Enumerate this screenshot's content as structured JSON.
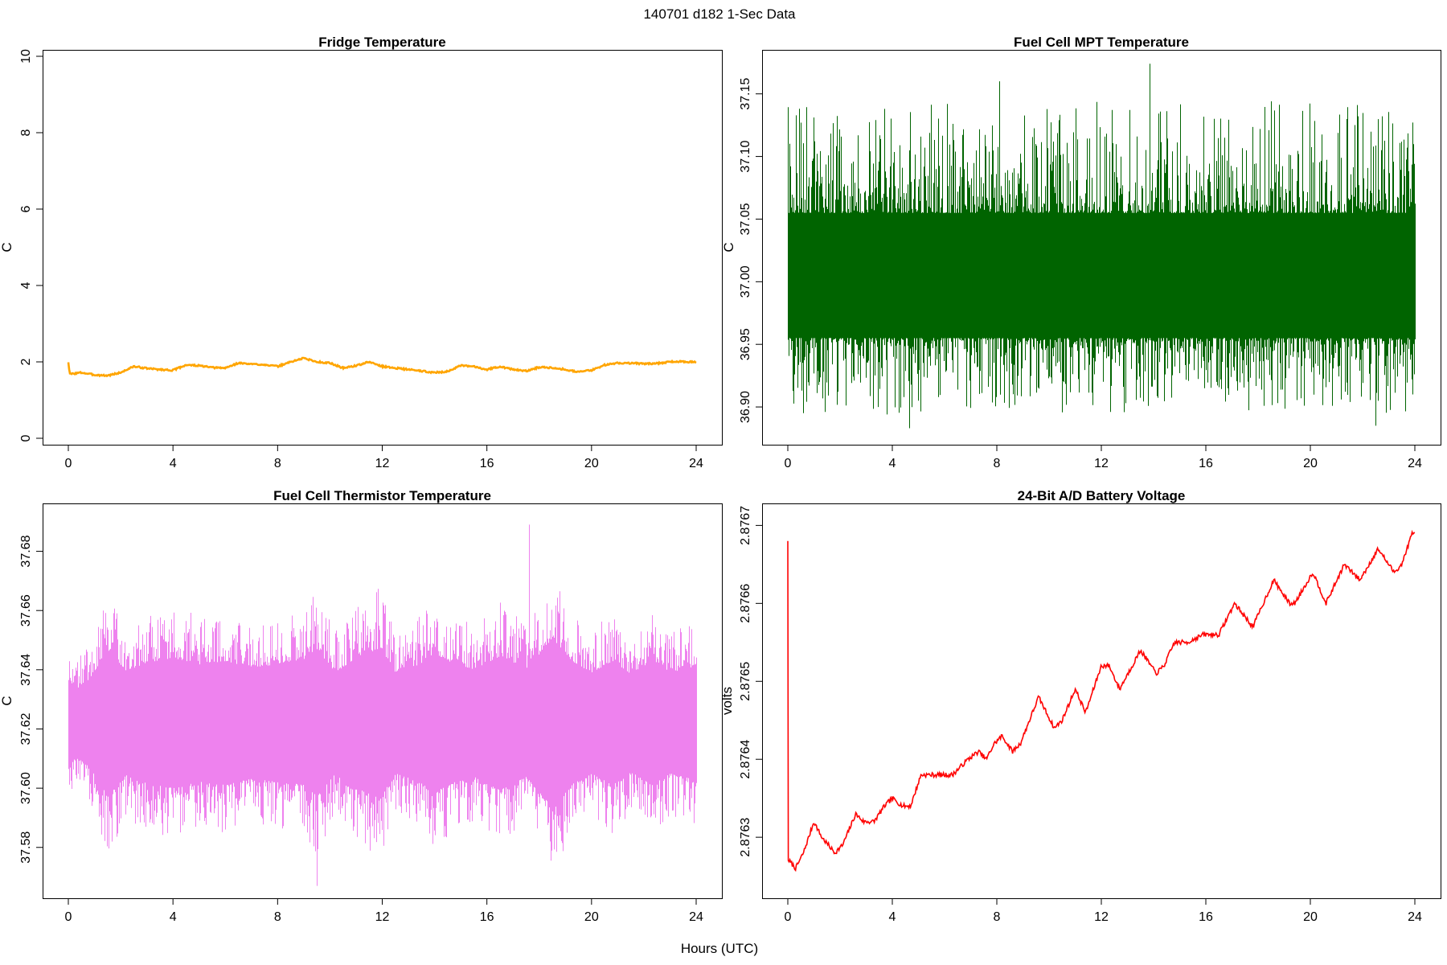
{
  "figure_title": "140701   d182   1-Sec Data",
  "shared_xlabel": "Hours (UTC)",
  "colors": {
    "fridge": "#FFA500",
    "mpt": "#006400",
    "thermistor": "#EE82EE",
    "battery": "#FF0000",
    "axes": "#000000",
    "background": "#FFFFFF"
  },
  "chart_data": [
    {
      "id": "fridge",
      "type": "line",
      "title": "Fridge Temperature",
      "ylabel": "C",
      "xlim": [
        0,
        24
      ],
      "ylim": [
        0,
        10
      ],
      "xticks": [
        0,
        4,
        8,
        12,
        16,
        20,
        24
      ],
      "yticks": [
        0,
        2,
        4,
        6,
        8,
        10
      ],
      "ytick_labels": [
        "0",
        "2",
        "4",
        "6",
        "8",
        "10"
      ],
      "series": [
        {
          "name": "Fridge Temperature",
          "x": [
            0,
            0.05,
            0.5,
            1.0,
            1.5,
            2.0,
            2.5,
            3.0,
            3.5,
            4.0,
            4.5,
            5.0,
            5.5,
            6.0,
            6.5,
            7.0,
            7.5,
            8.0,
            8.5,
            9.0,
            9.5,
            10.0,
            10.5,
            11.0,
            11.5,
            12.0,
            12.5,
            13.0,
            13.5,
            14.0,
            14.5,
            15.0,
            15.5,
            16.0,
            16.5,
            17.0,
            17.5,
            18.0,
            18.5,
            19.0,
            19.5,
            20.0,
            20.5,
            21.0,
            21.5,
            22.0,
            22.5,
            23.0,
            23.5,
            24.0
          ],
          "y": [
            2.0,
            1.68,
            1.72,
            1.66,
            1.64,
            1.72,
            1.88,
            1.83,
            1.8,
            1.78,
            1.92,
            1.9,
            1.85,
            1.84,
            1.97,
            1.94,
            1.93,
            1.88,
            2.0,
            2.1,
            2.0,
            1.97,
            1.84,
            1.9,
            2.0,
            1.88,
            1.84,
            1.8,
            1.76,
            1.72,
            1.75,
            1.9,
            1.88,
            1.8,
            1.88,
            1.8,
            1.76,
            1.86,
            1.85,
            1.8,
            1.74,
            1.78,
            1.92,
            1.97,
            1.97,
            1.95,
            1.96,
            2.0,
            2.01,
            1.99
          ]
        }
      ]
    },
    {
      "id": "mpt",
      "type": "line",
      "title": "Fuel Cell MPT Temperature",
      "ylabel": "C",
      "xlim": [
        0,
        24
      ],
      "ylim": [
        36.875,
        37.18
      ],
      "xticks": [
        0,
        4,
        8,
        12,
        16,
        20,
        24
      ],
      "yticks": [
        36.9,
        36.95,
        37.0,
        37.05,
        37.1,
        37.15
      ],
      "ytick_labels": [
        "36.90",
        "36.95",
        "37.00",
        "37.05",
        "37.10",
        "37.15"
      ],
      "noise_band": {
        "center": 37.003,
        "dense_low": 36.955,
        "dense_high": 37.055,
        "spike_min": 36.883,
        "spike_max": 37.174
      }
    },
    {
      "id": "thermistor",
      "type": "line",
      "title": "Fuel Cell Thermistor Temperature",
      "ylabel": "C",
      "xlim": [
        0,
        24
      ],
      "ylim": [
        37.565,
        37.694
      ],
      "xticks": [
        0,
        4,
        8,
        12,
        16,
        20,
        24
      ],
      "yticks": [
        37.58,
        37.6,
        37.62,
        37.64,
        37.66,
        37.68
      ],
      "ytick_labels": [
        "37.58",
        "37.60",
        "37.62",
        "37.64",
        "37.66",
        "37.68"
      ],
      "noise_band": {
        "center": 37.622,
        "envelope_hours": [
          0,
          0.3,
          0.8,
          1.5,
          2.2,
          3.0,
          4.0,
          5.0,
          6.0,
          7.0,
          8.0,
          9.0,
          9.5,
          10.2,
          11.0,
          11.9,
          12.5,
          13.3,
          14.0,
          14.8,
          15.5,
          16.5,
          17.5,
          18.5,
          19.3,
          20.0,
          20.8,
          21.5,
          22.3,
          23.0,
          24.0
        ],
        "envelope_halfwidth": [
          0.026,
          0.021,
          0.027,
          0.045,
          0.032,
          0.037,
          0.04,
          0.036,
          0.038,
          0.034,
          0.036,
          0.038,
          0.045,
          0.031,
          0.04,
          0.046,
          0.031,
          0.035,
          0.042,
          0.036,
          0.033,
          0.041,
          0.033,
          0.052,
          0.037,
          0.031,
          0.038,
          0.03,
          0.038,
          0.031,
          0.035
        ]
      }
    },
    {
      "id": "battery",
      "type": "line",
      "title": "24-Bit A/D Battery Voltage",
      "ylabel": "volts",
      "xlim": [
        0,
        24
      ],
      "ylim": [
        2.87623,
        2.87672
      ],
      "xticks": [
        0,
        4,
        8,
        12,
        16,
        20,
        24
      ],
      "yticks": [
        2.8763,
        2.8764,
        2.8765,
        2.8766,
        2.8767
      ],
      "ytick_labels": [
        "2.8763",
        "2.8764",
        "2.8765",
        "2.8766",
        "2.8767"
      ],
      "series": [
        {
          "name": "Battery Voltage",
          "x": [
            0,
            0.02,
            0.05,
            0.3,
            0.6,
            1.0,
            1.3,
            1.8,
            2.1,
            2.6,
            2.9,
            3.3,
            3.7,
            4.0,
            4.4,
            4.7,
            5.1,
            5.6,
            5.9,
            6.3,
            6.9,
            7.3,
            7.6,
            7.9,
            8.2,
            8.6,
            8.9,
            9.6,
            10.2,
            10.5,
            11.0,
            11.4,
            12.0,
            12.3,
            12.7,
            13.5,
            14.1,
            14.4,
            14.8,
            15.3,
            15.9,
            16.2,
            16.5,
            17.1,
            17.8,
            18.6,
            19.2,
            19.4,
            20.1,
            20.6,
            21.3,
            21.9,
            22.6,
            23.2,
            23.5,
            23.9,
            24.0
          ],
          "y": [
            2.87668,
            2.87627,
            2.87627,
            2.87626,
            2.87628,
            2.87632,
            2.8763,
            2.87628,
            2.87629,
            2.87633,
            2.87632,
            2.87632,
            2.87634,
            2.87635,
            2.87634,
            2.87634,
            2.87638,
            2.87638,
            2.87638,
            2.87638,
            2.8764,
            2.87641,
            2.8764,
            2.87642,
            2.87643,
            2.87641,
            2.87642,
            2.87648,
            2.87644,
            2.87645,
            2.87649,
            2.87646,
            2.87652,
            2.87652,
            2.87649,
            2.87654,
            2.87651,
            2.87652,
            2.87655,
            2.87655,
            2.87656,
            2.87656,
            2.87656,
            2.8766,
            2.87657,
            2.87663,
            2.8766,
            2.8766,
            2.87664,
            2.8766,
            2.87665,
            2.87663,
            2.87667,
            2.87664,
            2.87665,
            2.87669,
            2.87669
          ]
        }
      ]
    }
  ]
}
